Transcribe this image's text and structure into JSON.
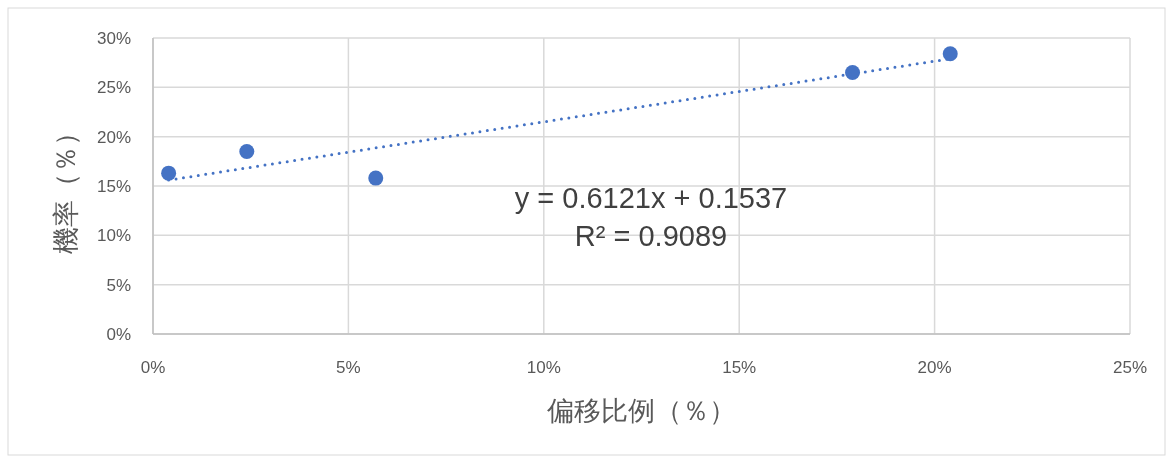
{
  "chart_data": {
    "type": "scatter",
    "xlabel": "偏移比例（％）",
    "ylabel": "機率（％）",
    "annotations": [
      "y = 0.6121x + 0.1537",
      "R² = 0.9089"
    ],
    "xlim": [
      0,
      25
    ],
    "ylim": [
      0,
      30
    ],
    "xticks": [
      {
        "value": 0,
        "label": "0%"
      },
      {
        "value": 5,
        "label": "5%"
      },
      {
        "value": 10,
        "label": "10%"
      },
      {
        "value": 15,
        "label": "15%"
      },
      {
        "value": 20,
        "label": "20%"
      },
      {
        "value": 25,
        "label": "25%"
      }
    ],
    "yticks": [
      {
        "value": 0,
        "label": "0%"
      },
      {
        "value": 5,
        "label": "5%"
      },
      {
        "value": 10,
        "label": "10%"
      },
      {
        "value": 15,
        "label": "15%"
      },
      {
        "value": 20,
        "label": "20%"
      },
      {
        "value": 25,
        "label": "25%"
      },
      {
        "value": 30,
        "label": "30%"
      }
    ],
    "grid": true,
    "marker": "circle",
    "series": [
      {
        "x": [
          0.4,
          2.4,
          5.7,
          17.9,
          20.4
        ],
        "values": [
          16.3,
          18.5,
          15.8,
          26.5,
          28.4
        ],
        "color": "#4472c4"
      },
      {
        "type": "line",
        "x": [
          0.4,
          20.4
        ],
        "values": [
          15.6,
          27.9
        ],
        "color": "#4472c4",
        "line_style": "dotted",
        "marker": "none"
      }
    ]
  }
}
